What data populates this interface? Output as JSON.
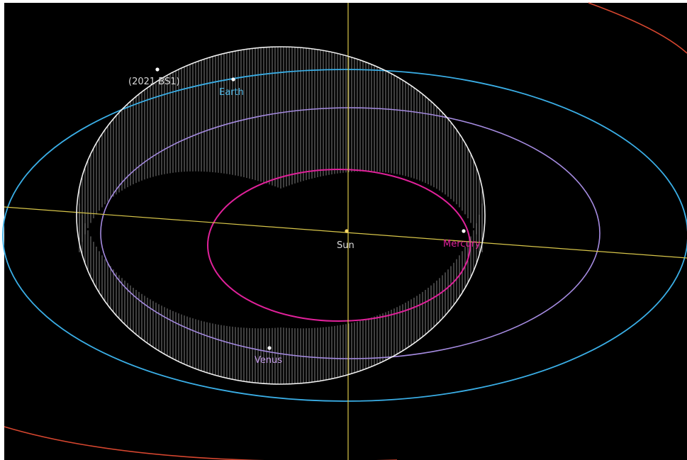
{
  "colors": {
    "background": "#000000",
    "sun": "#ffd966",
    "mercury_orbit": "#e0219a",
    "venus_orbit": "#a58be0",
    "earth_orbit": "#3aaee6",
    "mars_orbit": "#d6462f",
    "asteroid_orbit": "#f2f2f2",
    "axis": "#d8c64a",
    "body_dot": "#ffffff"
  },
  "labels": {
    "asteroid": "(2021 BS1)",
    "earth": "Earth",
    "sun": "Sun",
    "mercury": "Mercury",
    "venus": "Venus"
  },
  "label_colors": {
    "asteroid": "#d9d9d9",
    "earth": "#4fb8e6",
    "sun": "#d9d9d9",
    "mercury": "#e0219a",
    "venus": "#c49ce8"
  }
}
